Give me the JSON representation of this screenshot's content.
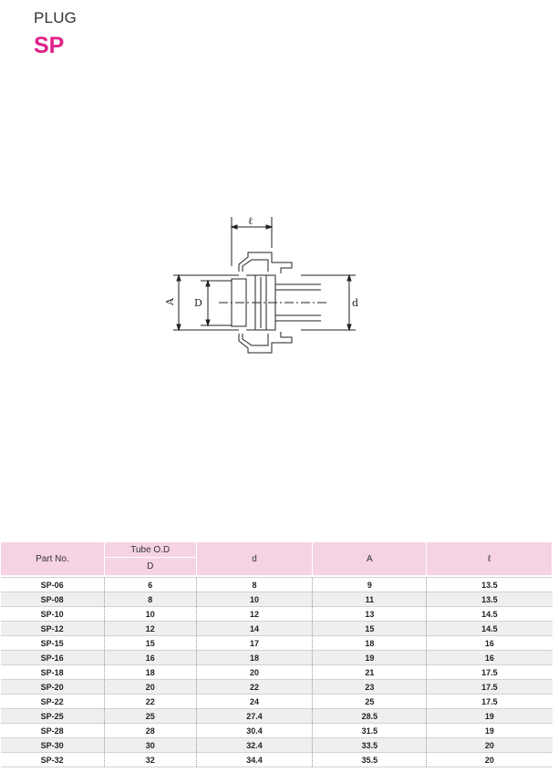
{
  "header": {
    "category": "PLUG",
    "model": "SP"
  },
  "drawing": {
    "labels": {
      "A": "A",
      "D": "D",
      "d": "d",
      "l": "ℓ"
    }
  },
  "table": {
    "headers": {
      "part_no": "Part No.",
      "tube_od": "Tube O.D",
      "tube_od_sub": "D",
      "d": "d",
      "A": "A",
      "l": "ℓ"
    },
    "rows": [
      [
        "SP-06",
        "6",
        "8",
        "9",
        "13.5"
      ],
      [
        "SP-08",
        "8",
        "10",
        "11",
        "13.5"
      ],
      [
        "SP-10",
        "10",
        "12",
        "13",
        "14.5"
      ],
      [
        "SP-12",
        "12",
        "14",
        "15",
        "14.5"
      ],
      [
        "SP-15",
        "15",
        "17",
        "18",
        "16"
      ],
      [
        "SP-16",
        "16",
        "18",
        "19",
        "16"
      ],
      [
        "SP-18",
        "18",
        "20",
        "21",
        "17.5"
      ],
      [
        "SP-20",
        "20",
        "22",
        "23",
        "17.5"
      ],
      [
        "SP-22",
        "22",
        "24",
        "25",
        "17.5"
      ],
      [
        "SP-25",
        "25",
        "27.4",
        "28.5",
        "19"
      ],
      [
        "SP-28",
        "28",
        "30.4",
        "31.5",
        "19"
      ],
      [
        "SP-30",
        "30",
        "32.4",
        "33.5",
        "20"
      ],
      [
        "SP-32",
        "32",
        "34.4",
        "35.5",
        "20"
      ]
    ]
  }
}
